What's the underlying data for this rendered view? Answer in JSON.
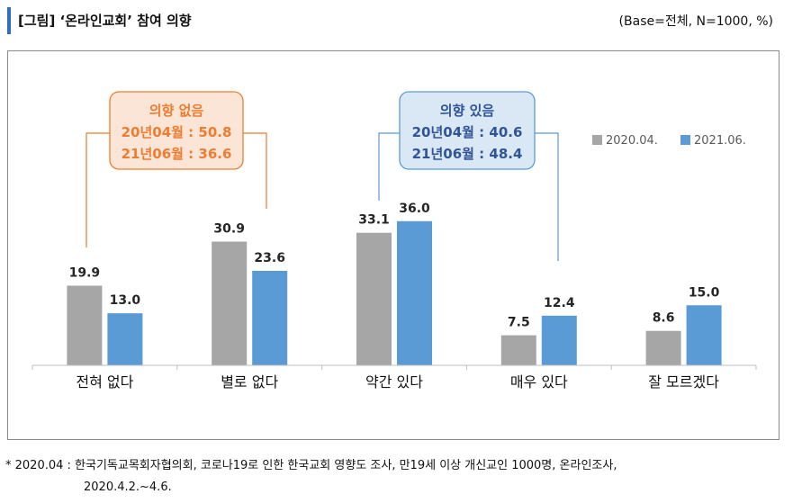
{
  "header": {
    "title": "[그림] ‘온라인교회’ 참여 의향",
    "base": "(Base=전체, N=1000, %)"
  },
  "callouts": {
    "no_intent": {
      "heading": "의향 없음",
      "line1": "20년04월 : 50.8",
      "line2": "21년06월 : 36.6"
    },
    "intent": {
      "heading": "의향 있음",
      "line1": "20년04월 : 40.6",
      "line2": "21년06월 : 48.4"
    }
  },
  "note": {
    "line1": "* 2020.04 : 한국기독교목회자협의회, 코로나19로 인한 한국교회 영향도 조사, 만19세 이상 개신교인 1000명, 온라인조사,",
    "line2": "2020.4.2.~4.6."
  },
  "colors": {
    "series1": "#a6a6a6",
    "series2": "#5b9bd5",
    "orange": "#ed7d31",
    "orange_fill": "#fbe5d6",
    "blue_fill": "#dae8f5",
    "blue_text": "#2f5597"
  },
  "chart_data": {
    "type": "bar",
    "categories": [
      "전혀 없다",
      "별로 없다",
      "약간 있다",
      "매우 있다",
      "잘 모르겠다"
    ],
    "series": [
      {
        "name": "2020.04.",
        "values": [
          19.9,
          30.9,
          33.1,
          7.5,
          8.6
        ]
      },
      {
        "name": "2021.06.",
        "values": [
          13.0,
          23.6,
          36.0,
          12.4,
          15.0
        ]
      }
    ],
    "ylim": [
      0,
      40
    ],
    "legend": "right",
    "value_labels": [
      [
        "19.9",
        "30.9",
        "33.1",
        "7.5",
        "8.6"
      ],
      [
        "13.0",
        "23.6",
        "36.0",
        "12.4",
        "15.0"
      ]
    ]
  }
}
